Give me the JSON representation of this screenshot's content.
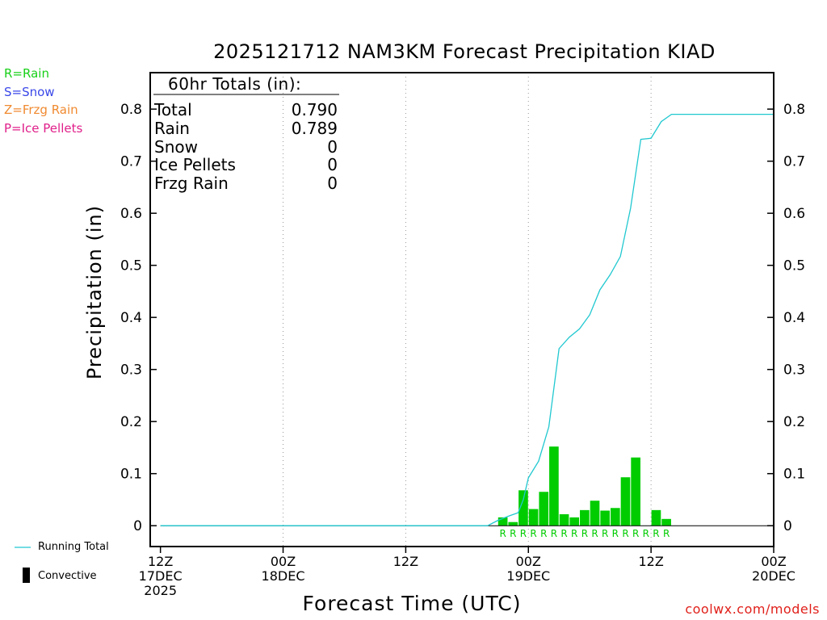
{
  "title": "2025121712 NAM3KM Forecast Precipitation KIAD",
  "ptype_legend": [
    {
      "label": "R=Rain",
      "color": "#18d018"
    },
    {
      "label": "S=Snow",
      "color": "#3a48e8"
    },
    {
      "label": "Z=Frzg Rain",
      "color": "#f08a30"
    },
    {
      "label": "P=Ice Pellets",
      "color": "#e0208a"
    }
  ],
  "totals_box": {
    "heading": "60hr Totals (in):",
    "rows": [
      {
        "label": "Total",
        "value": "0.790"
      },
      {
        "label": "Rain",
        "value": "0.789"
      },
      {
        "label": "Snow",
        "value": "0"
      },
      {
        "label": "Ice Pellets",
        "value": "0"
      },
      {
        "label": "Frzg Rain",
        "value": "0"
      }
    ]
  },
  "footer": {
    "running_total_label": "Running Total",
    "convective_label": "Convective",
    "url": "coolwx.com/models"
  },
  "colors": {
    "bars": "#00cc00",
    "running_total": "#20c8d0",
    "rain_marker": "#00cc00",
    "url": "#e0201a"
  },
  "chart_data": {
    "type": "bar",
    "ylabel": "Precipitation (in)",
    "xlabel": "Forecast Time (UTC)",
    "ylim": [
      -0.04,
      0.87
    ],
    "yticks": [
      0,
      0.1,
      0.2,
      0.3,
      0.4,
      0.5,
      0.6,
      0.7,
      0.8
    ],
    "ytick_labels": [
      "0",
      "0.1",
      "0.2",
      "0.3",
      "0.4",
      "0.5",
      "0.6",
      "0.7",
      "0.8"
    ],
    "xlim_hours": [
      -1,
      60
    ],
    "xticks": [
      {
        "hour": 0,
        "lines": [
          "12Z",
          "17DEC",
          "2025"
        ]
      },
      {
        "hour": 12,
        "lines": [
          "00Z",
          "18DEC"
        ]
      },
      {
        "hour": 24,
        "lines": [
          "12Z"
        ]
      },
      {
        "hour": 36,
        "lines": [
          "00Z",
          "19DEC"
        ]
      },
      {
        "hour": 48,
        "lines": [
          "12Z"
        ]
      },
      {
        "hour": 60,
        "lines": [
          "00Z",
          "20DEC"
        ]
      }
    ],
    "grid_hours": [
      12,
      24,
      36,
      48
    ],
    "grid": "vertical dotted",
    "precip_type_marker": "R",
    "bars": {
      "name": "Hourly Precipitation",
      "hours": [
        34,
        35,
        36,
        37,
        38,
        39,
        40,
        41,
        42,
        43,
        44,
        45,
        46,
        47,
        48,
        49,
        50
      ],
      "values": [
        0.016,
        0.007,
        0.068,
        0.032,
        0.065,
        0.152,
        0.022,
        0.016,
        0.03,
        0.048,
        0.029,
        0.034,
        0.093,
        0.131,
        0.0,
        0.03,
        0.013
      ],
      "ptype": [
        "R",
        "R",
        "R",
        "R",
        "R",
        "R",
        "R",
        "R",
        "R",
        "R",
        "R",
        "R",
        "R",
        "R",
        "R",
        "R",
        "R"
      ]
    },
    "running_total": {
      "name": "Running Total",
      "hours": [
        0,
        32,
        33,
        34,
        35,
        35.5,
        36,
        37,
        38,
        39,
        40,
        41,
        42,
        43,
        44,
        45,
        46,
        47,
        48,
        49,
        50,
        60
      ],
      "values": [
        0,
        0,
        0.01,
        0.018,
        0.025,
        0.05,
        0.092,
        0.124,
        0.19,
        0.34,
        0.362,
        0.378,
        0.405,
        0.453,
        0.482,
        0.517,
        0.61,
        0.742,
        0.744,
        0.776,
        0.79,
        0.79
      ]
    }
  }
}
